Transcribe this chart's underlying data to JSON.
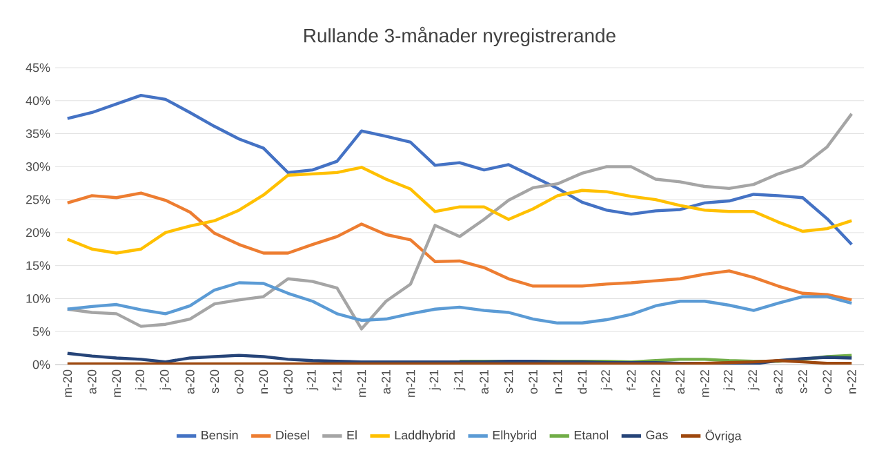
{
  "chart_data": {
    "type": "line",
    "title": "Rullande 3-månader nyregistrerande",
    "categories": [
      "m-20",
      "a-20",
      "m-20",
      "j-20",
      "j-20",
      "a-20",
      "s-20",
      "o-20",
      "n-20",
      "d-20",
      "j-21",
      "f-21",
      "m-21",
      "a-21",
      "m-21",
      "j-21",
      "j-21",
      "a-21",
      "s-21",
      "o-21",
      "n-21",
      "d-21",
      "j-22",
      "f-22",
      "m-22",
      "a-22",
      "m-22",
      "j-22",
      "j-22",
      "a-22",
      "s-22",
      "o-22",
      "n-22"
    ],
    "series": [
      {
        "name": "Bensin",
        "color": "#4472c4",
        "values": [
          37.3,
          38.2,
          39.5,
          40.8,
          40.2,
          38.2,
          36.1,
          34.2,
          32.8,
          29.1,
          29.5,
          30.8,
          35.4,
          34.6,
          33.7,
          30.2,
          30.6,
          29.5,
          30.3,
          28.5,
          26.7,
          24.6,
          23.4,
          22.8,
          23.3,
          23.5,
          24.5,
          24.8,
          25.8,
          25.6,
          25.3,
          22.1,
          18.2
        ]
      },
      {
        "name": "Diesel",
        "color": "#ed7d31",
        "values": [
          24.5,
          25.6,
          25.3,
          26.0,
          24.9,
          23.1,
          19.9,
          18.2,
          16.9,
          16.9,
          18.2,
          19.4,
          21.3,
          19.7,
          18.9,
          15.6,
          15.7,
          14.7,
          13.0,
          11.9,
          11.9,
          11.9,
          12.2,
          12.4,
          12.7,
          13.0,
          13.7,
          14.2,
          13.2,
          11.9,
          10.8,
          10.6,
          9.8
        ]
      },
      {
        "name": "El",
        "color": "#a5a5a5",
        "values": [
          8.4,
          7.9,
          7.7,
          5.8,
          6.1,
          6.9,
          9.2,
          9.8,
          10.3,
          13.0,
          12.6,
          11.6,
          5.4,
          9.6,
          12.2,
          21.1,
          19.4,
          22.0,
          24.9,
          26.8,
          27.4,
          29.0,
          30.0,
          30.0,
          28.1,
          27.7,
          27.0,
          26.7,
          27.3,
          28.9,
          30.1,
          33.0,
          38.0
        ]
      },
      {
        "name": "Laddhybrid",
        "color": "#ffc000",
        "values": [
          19.0,
          17.5,
          16.9,
          17.5,
          20.0,
          21.0,
          21.8,
          23.4,
          25.7,
          28.7,
          28.9,
          29.1,
          29.9,
          28.1,
          26.6,
          23.2,
          23.9,
          23.9,
          22.0,
          23.6,
          25.6,
          26.4,
          26.2,
          25.5,
          25.0,
          24.1,
          23.4,
          23.2,
          23.2,
          21.6,
          20.2,
          20.6,
          21.8
        ]
      },
      {
        "name": "Elhybrid",
        "color": "#5b9bd5",
        "values": [
          8.4,
          8.8,
          9.1,
          8.3,
          7.7,
          8.9,
          11.3,
          12.4,
          12.3,
          10.8,
          9.6,
          7.7,
          6.7,
          6.9,
          7.7,
          8.4,
          8.7,
          8.2,
          7.9,
          6.9,
          6.3,
          6.3,
          6.8,
          7.6,
          8.9,
          9.6,
          9.6,
          9.0,
          8.2,
          9.3,
          10.3,
          10.3,
          9.3
        ]
      },
      {
        "name": "Etanol",
        "color": "#70ad47",
        "values": [
          null,
          null,
          null,
          null,
          null,
          null,
          null,
          null,
          null,
          null,
          null,
          null,
          null,
          null,
          null,
          null,
          0.5,
          0.5,
          0.5,
          0.5,
          0.5,
          0.5,
          0.5,
          0.4,
          0.6,
          0.8,
          0.8,
          0.6,
          0.5,
          0.5,
          0.8,
          1.2,
          1.4
        ]
      },
      {
        "name": "Gas",
        "color": "#264478",
        "values": [
          1.7,
          1.3,
          1.0,
          0.8,
          0.4,
          1.0,
          1.2,
          1.4,
          1.2,
          0.8,
          0.6,
          0.5,
          0.4,
          0.4,
          0.4,
          0.4,
          0.4,
          0.4,
          0.5,
          0.5,
          0.4,
          0.4,
          0.3,
          0.3,
          0.3,
          0.2,
          0.2,
          0.1,
          0.1,
          0.6,
          0.9,
          1.1,
          1.0
        ]
      },
      {
        "name": "Övriga",
        "color": "#9e480e",
        "values": [
          0.1,
          0.1,
          0.1,
          0.1,
          0.1,
          0.1,
          0.1,
          0.1,
          0.1,
          0.1,
          0.1,
          0.1,
          0.1,
          0.1,
          0.1,
          0.1,
          0.1,
          0.1,
          0.1,
          0.1,
          0.1,
          0.1,
          0.1,
          0.1,
          0.1,
          0.1,
          0.2,
          0.3,
          0.4,
          0.6,
          0.4,
          0.2,
          0.2
        ]
      }
    ],
    "ylim": [
      0,
      45
    ],
    "yticks": [
      {
        "value": 0,
        "label": "0%"
      },
      {
        "value": 5,
        "label": "5%"
      },
      {
        "value": 10,
        "label": "10%"
      },
      {
        "value": 15,
        "label": "15%"
      },
      {
        "value": 20,
        "label": "20%"
      },
      {
        "value": 25,
        "label": "25%"
      },
      {
        "value": 30,
        "label": "30%"
      },
      {
        "value": 35,
        "label": "35%"
      },
      {
        "value": 40,
        "label": "40%"
      },
      {
        "value": 45,
        "label": "45%"
      }
    ],
    "grid": "y",
    "legend": "bottom"
  }
}
